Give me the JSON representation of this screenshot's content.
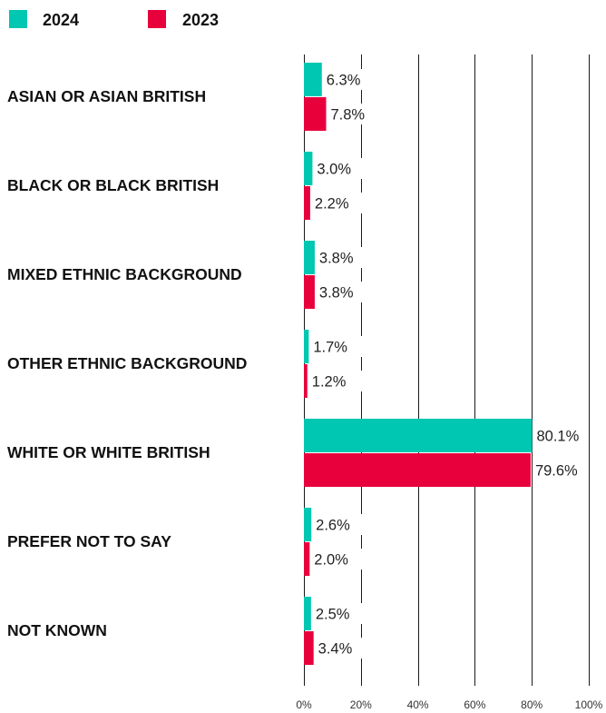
{
  "chart_data": {
    "type": "bar",
    "orientation": "horizontal",
    "categories": [
      "ASIAN OR ASIAN BRITISH",
      "BLACK OR BLACK BRITISH",
      "MIXED ETHNIC BACKGROUND",
      "OTHER ETHNIC BACKGROUND",
      "WHITE OR WHITE BRITISH",
      "PREFER NOT TO SAY",
      "NOT KNOWN"
    ],
    "series": [
      {
        "name": "2024",
        "color": "#00c7b1",
        "values": [
          6.3,
          3.0,
          3.8,
          1.7,
          80.1,
          2.6,
          2.5
        ],
        "labels": [
          "6.3%",
          "3.0%",
          "3.8%",
          "1.7%",
          "80.1%",
          "2.6%",
          "2.5%"
        ]
      },
      {
        "name": "2023",
        "color": "#e8003d",
        "values": [
          7.8,
          2.2,
          3.8,
          1.2,
          79.6,
          2.0,
          3.4
        ],
        "labels": [
          "7.8%",
          "2.2%",
          "3.8%",
          "1.2%",
          "79.6%",
          "2.0%",
          "3.4%"
        ]
      }
    ],
    "xlim": [
      0,
      100
    ],
    "xticks": [
      0,
      20,
      40,
      60,
      80,
      100
    ],
    "xtick_labels": [
      "0%",
      "20%",
      "40%",
      "60%",
      "80%",
      "100%"
    ],
    "grid": true,
    "legend_position": "top-left",
    "title": "",
    "xlabel": "",
    "ylabel": ""
  }
}
